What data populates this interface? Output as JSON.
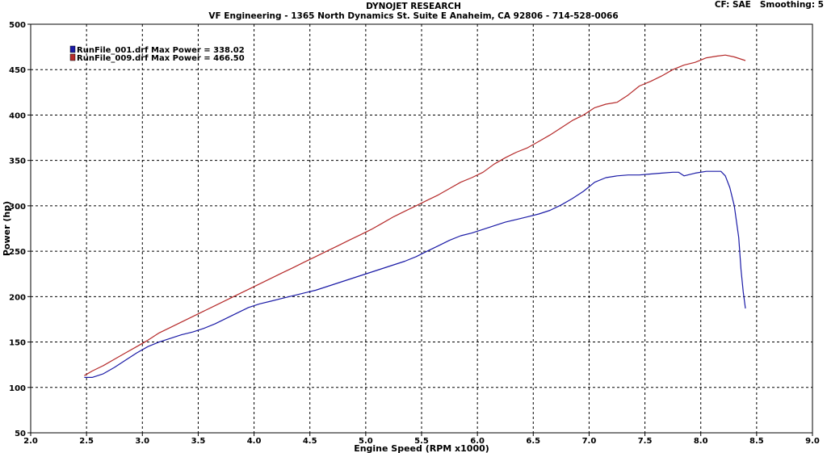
{
  "header": {
    "title": "DYNOJET RESEARCH",
    "subtitle": "VF Engineering - 1365 North Dynamics St. Suite E Anaheim, CA 92806 - 714-528-0066",
    "correction": "CF: SAE",
    "smoothing": "Smoothing: 5"
  },
  "chart_data": {
    "type": "line",
    "xlabel": "Engine Speed (RPM x1000)",
    "ylabel": "Power (hp)",
    "xlim": [
      2.0,
      9.0
    ],
    "ylim": [
      50,
      500
    ],
    "xticks": [
      "2.0",
      "2.5",
      "3.0",
      "3.5",
      "4.0",
      "4.5",
      "5.0",
      "5.5",
      "6.0",
      "6.5",
      "7.0",
      "7.5",
      "8.0",
      "8.5",
      "9.0"
    ],
    "yticks": [
      "50",
      "100",
      "150",
      "200",
      "250",
      "300",
      "350",
      "400",
      "450",
      "500"
    ],
    "grid": true,
    "legend_position": "top-left",
    "series": [
      {
        "name": "RunFile_001.drf Max Power = 338.02",
        "color": "#1a1aa6",
        "x": [
          2.48,
          2.55,
          2.65,
          2.75,
          2.85,
          2.95,
          3.05,
          3.15,
          3.25,
          3.35,
          3.45,
          3.55,
          3.65,
          3.75,
          3.85,
          3.95,
          4.05,
          4.15,
          4.25,
          4.35,
          4.45,
          4.55,
          4.65,
          4.75,
          4.85,
          4.95,
          5.05,
          5.15,
          5.25,
          5.35,
          5.45,
          5.55,
          5.65,
          5.75,
          5.85,
          5.95,
          6.05,
          6.15,
          6.25,
          6.35,
          6.45,
          6.55,
          6.65,
          6.75,
          6.85,
          6.95,
          7.05,
          7.15,
          7.25,
          7.35,
          7.45,
          7.55,
          7.65,
          7.75,
          7.8,
          7.85,
          7.95,
          8.05,
          8.12,
          8.18,
          8.22,
          8.26,
          8.3,
          8.34,
          8.36,
          8.38,
          8.4
        ],
        "values": [
          111,
          111,
          115,
          122,
          130,
          138,
          145,
          150,
          154,
          158,
          161,
          165,
          170,
          176,
          182,
          188,
          192,
          195,
          198,
          201,
          204,
          207,
          211,
          215,
          219,
          223,
          227,
          231,
          235,
          239,
          244,
          250,
          256,
          262,
          267,
          270,
          274,
          278,
          282,
          285,
          288,
          291,
          295,
          301,
          308,
          316,
          326,
          331,
          333,
          334,
          334,
          335,
          336,
          337,
          337,
          333,
          336,
          338,
          338,
          338,
          333,
          320,
          300,
          265,
          230,
          205,
          187
        ]
      },
      {
        "name": "RunFile_009.drf Max Power = 466.50",
        "color": "#b52a2a",
        "x": [
          2.48,
          2.55,
          2.65,
          2.75,
          2.85,
          2.95,
          3.05,
          3.15,
          3.25,
          3.35,
          3.45,
          3.55,
          3.65,
          3.75,
          3.85,
          3.95,
          4.05,
          4.15,
          4.25,
          4.35,
          4.45,
          4.55,
          4.65,
          4.75,
          4.85,
          4.95,
          5.05,
          5.15,
          5.25,
          5.35,
          5.45,
          5.55,
          5.65,
          5.75,
          5.85,
          5.95,
          6.05,
          6.15,
          6.25,
          6.35,
          6.45,
          6.55,
          6.65,
          6.75,
          6.85,
          6.95,
          7.05,
          7.15,
          7.25,
          7.35,
          7.45,
          7.55,
          7.65,
          7.75,
          7.85,
          7.95,
          8.05,
          8.15,
          8.22,
          8.3,
          8.4
        ],
        "values": [
          113,
          118,
          124,
          131,
          138,
          145,
          152,
          160,
          166,
          172,
          178,
          184,
          190,
          196,
          202,
          208,
          214,
          220,
          226,
          232,
          238,
          244,
          250,
          256,
          262,
          268,
          274,
          281,
          288,
          294,
          300,
          306,
          312,
          319,
          326,
          331,
          337,
          346,
          353,
          359,
          364,
          371,
          378,
          386,
          394,
          400,
          408,
          412,
          414,
          422,
          432,
          437,
          443,
          450,
          455,
          458,
          463,
          465,
          466,
          464,
          460
        ]
      }
    ]
  }
}
